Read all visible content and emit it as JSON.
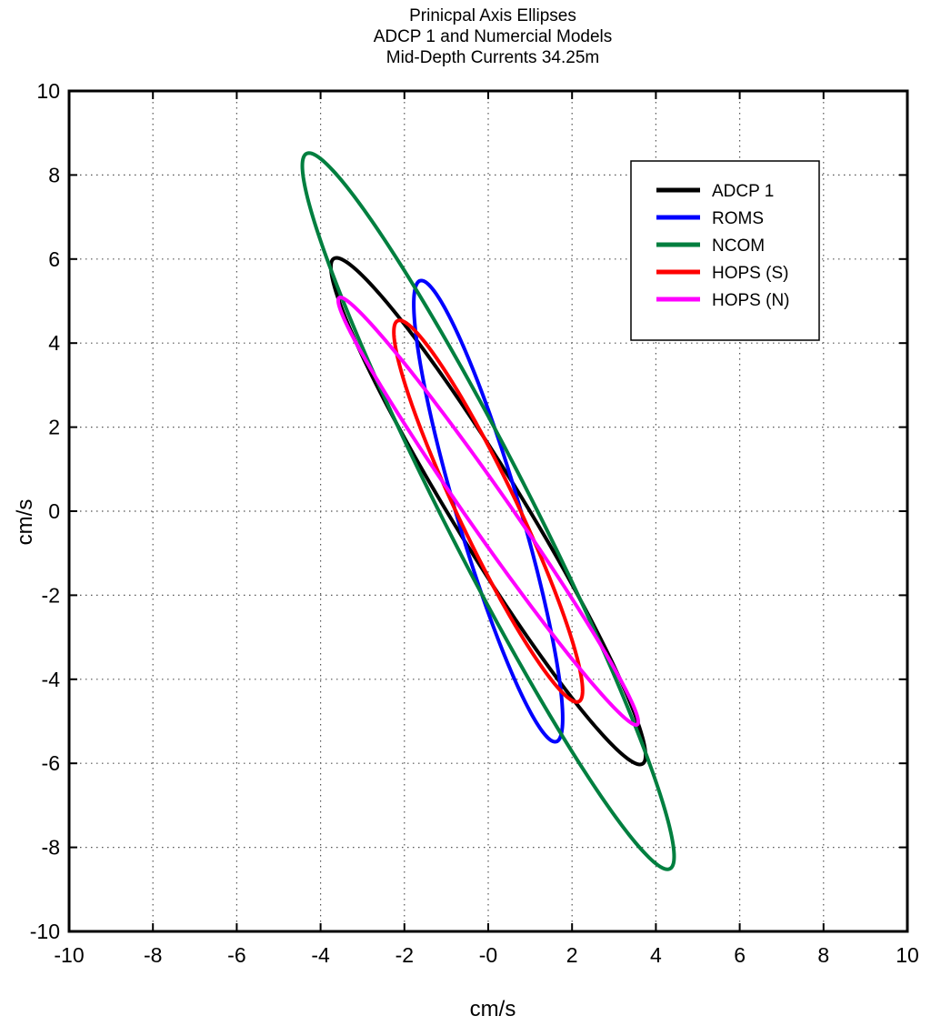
{
  "chart_data": {
    "type": "line",
    "title": [
      "Prinicpal Axis Ellipses",
      "ADCP 1 and Numercial Models",
      "Mid-Depth Currents 34.25m"
    ],
    "xlabel": "cm/s",
    "ylabel": "cm/s",
    "xlim": [
      -10,
      10
    ],
    "ylim": [
      -10,
      10
    ],
    "xticks": [
      -10,
      -8,
      -6,
      -4,
      -2,
      0,
      2,
      4,
      6,
      8,
      10
    ],
    "yticks": [
      -10,
      -8,
      -6,
      -4,
      -2,
      0,
      2,
      4,
      6,
      8,
      10
    ],
    "xtick_labels": [
      "-10",
      "-8",
      "-6",
      "-4",
      "-2",
      "-0",
      "2",
      "4",
      "6",
      "8",
      "10"
    ],
    "ytick_labels": [
      "-10",
      "-8",
      "-6",
      "-4",
      "-2",
      "0",
      "2",
      "4",
      "6",
      "8",
      "10"
    ],
    "grid": "dotted",
    "legend_position": "top-right",
    "series": [
      {
        "name": "ADCP 1",
        "color": "#000000",
        "shape": "ellipse",
        "center": [
          0,
          0
        ],
        "semi_major": 7.05,
        "semi_minor": 0.85,
        "major_axis_direction_deg": 121.5
      },
      {
        "name": "ROMS",
        "color": "#0000ff",
        "shape": "ellipse",
        "center": [
          0,
          0
        ],
        "semi_major": 5.72,
        "semi_minor": 0.75,
        "major_axis_direction_deg": 106.5
      },
      {
        "name": "NCOM",
        "color": "#007f3f",
        "shape": "ellipse",
        "center": [
          0,
          0
        ],
        "semi_major": 9.55,
        "semi_minor": 1.05,
        "major_axis_direction_deg": 117.0
      },
      {
        "name": "HOPS (S)",
        "color": "#ff0000",
        "shape": "ellipse",
        "center": [
          0,
          0
        ],
        "semi_major": 5.02,
        "semi_minor": 0.7,
        "major_axis_direction_deg": 115.5
      },
      {
        "name": "HOPS (N)",
        "color": "#ff00ff",
        "shape": "ellipse",
        "center": [
          0,
          0
        ],
        "semi_major": 6.2,
        "semi_minor": 0.5,
        "major_axis_direction_deg": 125.0
      }
    ]
  }
}
